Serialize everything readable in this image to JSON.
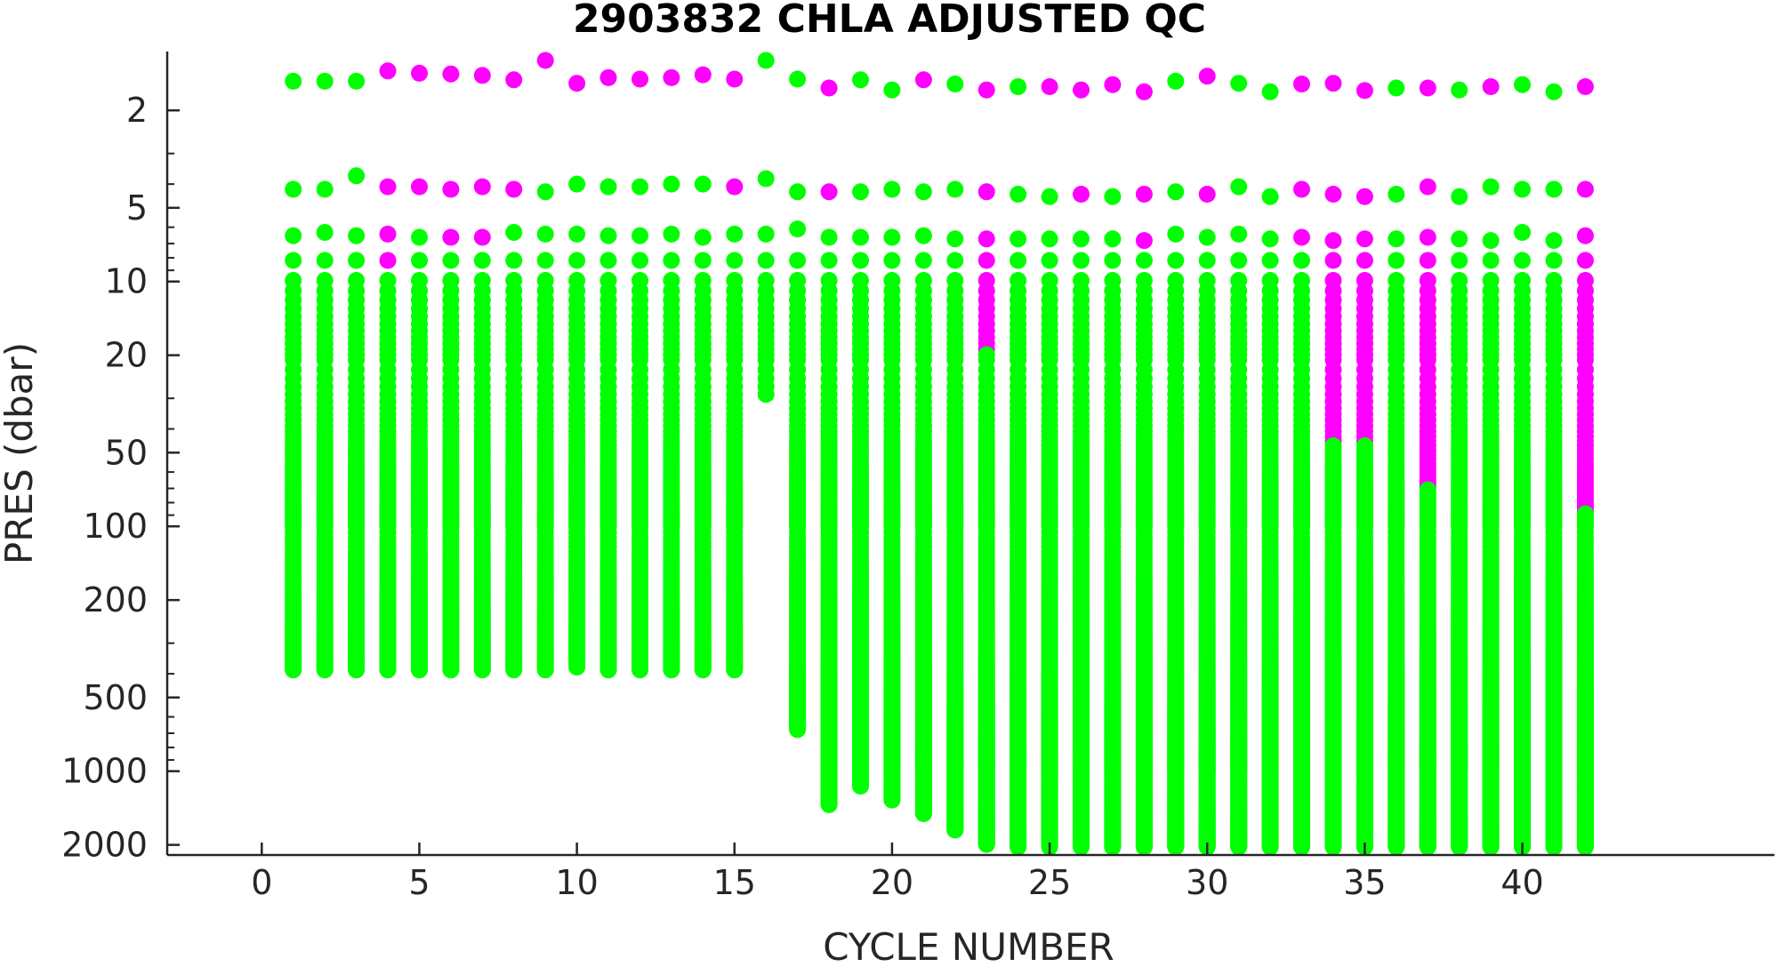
{
  "chart_data": {
    "type": "scatter",
    "title": "2903832  CHLA ADJUSTED QC",
    "xlabel": "CYCLE NUMBER",
    "ylabel": "PRES (dbar)",
    "xlim": [
      -3,
      48
    ],
    "ylim": [
      2200,
      1.15
    ],
    "yscale": "log",
    "y_reversed": true,
    "grid": false,
    "xticks": [
      0,
      5,
      10,
      15,
      20,
      25,
      30,
      35,
      40
    ],
    "yticks": [
      2,
      5,
      10,
      20,
      50,
      100,
      200,
      500,
      1000,
      2000
    ],
    "colors": {
      "qc_good": "#00ff00",
      "qc_flagged": "#ff00ff"
    },
    "cycles": [
      1,
      2,
      3,
      4,
      5,
      6,
      7,
      8,
      9,
      10,
      11,
      12,
      13,
      14,
      15,
      16,
      17,
      18,
      19,
      20,
      21,
      22,
      23,
      24,
      25,
      26,
      27,
      28,
      29,
      30,
      31,
      32,
      33,
      34,
      35,
      36,
      37,
      38,
      39,
      40,
      41,
      42
    ],
    "surface_pres": [
      1.52,
      1.52,
      1.52,
      1.38,
      1.41,
      1.42,
      1.44,
      1.5,
      1.25,
      1.55,
      1.47,
      1.49,
      1.47,
      1.43,
      1.49,
      1.25,
      1.49,
      1.62,
      1.5,
      1.65,
      1.5,
      1.56,
      1.65,
      1.6,
      1.6,
      1.65,
      1.57,
      1.68,
      1.52,
      1.45,
      1.55,
      1.68,
      1.56,
      1.55,
      1.66,
      1.62,
      1.62,
      1.65,
      1.6,
      1.57,
      1.68,
      1.6
    ],
    "surface_flag": [
      0,
      0,
      0,
      1,
      1,
      1,
      1,
      1,
      1,
      1,
      1,
      1,
      1,
      1,
      1,
      0,
      0,
      1,
      0,
      0,
      1,
      0,
      1,
      0,
      1,
      1,
      1,
      1,
      0,
      1,
      0,
      0,
      1,
      1,
      1,
      0,
      1,
      0,
      1,
      0,
      0,
      1
    ],
    "p2": [
      4.2,
      4.2,
      3.7,
      4.1,
      4.1,
      4.2,
      4.1,
      4.2,
      4.3,
      4.0,
      4.1,
      4.1,
      4.0,
      4.0,
      4.1,
      3.8,
      4.3,
      4.3,
      4.3,
      4.2,
      4.3,
      4.2,
      4.3,
      4.4,
      4.5,
      4.4,
      4.5,
      4.4,
      4.3,
      4.4,
      4.1,
      4.5,
      4.2,
      4.4,
      4.5,
      4.4,
      4.1,
      4.5,
      4.1,
      4.2,
      4.2,
      4.2
    ],
    "p2_flag": [
      0,
      0,
      0,
      1,
      1,
      1,
      1,
      1,
      0,
      0,
      0,
      0,
      0,
      0,
      1,
      0,
      0,
      1,
      0,
      0,
      0,
      0,
      1,
      0,
      0,
      1,
      0,
      1,
      0,
      1,
      0,
      0,
      1,
      1,
      1,
      0,
      1,
      0,
      0,
      0,
      0,
      1
    ],
    "p3": [
      6.5,
      6.3,
      6.5,
      6.4,
      6.6,
      6.6,
      6.6,
      6.3,
      6.4,
      6.4,
      6.5,
      6.5,
      6.4,
      6.6,
      6.4,
      6.4,
      6.1,
      6.6,
      6.6,
      6.6,
      6.5,
      6.7,
      6.7,
      6.7,
      6.7,
      6.7,
      6.7,
      6.8,
      6.4,
      6.6,
      6.4,
      6.7,
      6.6,
      6.8,
      6.7,
      6.7,
      6.6,
      6.7,
      6.8,
      6.3,
      6.8,
      6.5
    ],
    "p3_flag": [
      0,
      0,
      0,
      1,
      0,
      1,
      1,
      0,
      0,
      0,
      0,
      0,
      0,
      0,
      0,
      0,
      0,
      0,
      0,
      0,
      0,
      0,
      1,
      0,
      0,
      0,
      0,
      1,
      0,
      0,
      0,
      0,
      1,
      1,
      1,
      0,
      1,
      0,
      0,
      0,
      0,
      1
    ],
    "profile_bottom_pres": [
      390,
      390,
      390,
      390,
      390,
      390,
      390,
      390,
      390,
      380,
      390,
      390,
      390,
      390,
      390,
      30,
      680,
      1380,
      1160,
      1320,
      1500,
      1750,
      2000,
      2050,
      2050,
      2050,
      2050,
      2050,
      2050,
      2050,
      2050,
      2050,
      2050,
      2050,
      2050,
      2050,
      2050,
      2050,
      2050,
      2050,
      2050,
      2050
    ],
    "flagged_deep_to_pres": [
      0,
      0,
      0,
      8.5,
      0,
      0,
      0,
      0,
      0,
      0,
      0,
      0,
      0,
      0,
      0,
      0,
      0,
      0,
      0,
      0,
      0,
      0,
      19,
      0,
      0,
      0,
      0,
      0,
      0,
      0,
      0,
      0,
      0,
      46,
      46,
      0,
      70,
      0,
      0,
      0,
      0,
      88
    ]
  }
}
